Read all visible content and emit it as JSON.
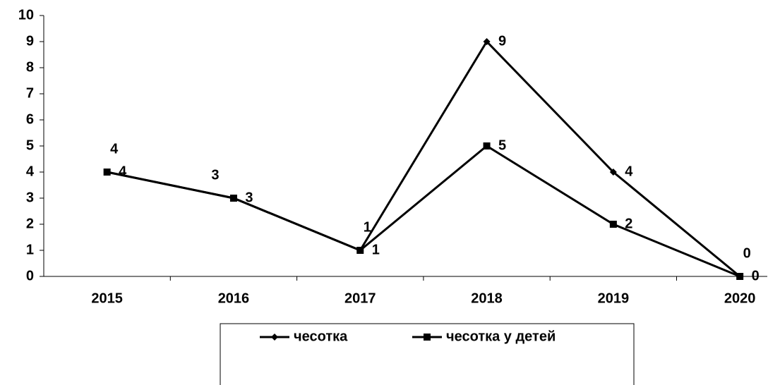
{
  "chart_data": {
    "type": "line",
    "categories": [
      "2015",
      "2016",
      "2017",
      "2018",
      "2019",
      "2020"
    ],
    "series": [
      {
        "name": "чесотка",
        "color": "#000000",
        "marker": "diamond",
        "values": [
          4,
          3,
          1,
          9,
          4,
          0
        ]
      },
      {
        "name": "чесотка у детей",
        "color": "#000000",
        "marker": "square",
        "values": [
          4,
          3,
          1,
          5,
          2,
          0
        ]
      }
    ],
    "ylim": [
      0,
      10
    ],
    "yticks": [
      0,
      1,
      2,
      3,
      4,
      5,
      6,
      7,
      8,
      9,
      10
    ],
    "grid": false,
    "legend": "bottom"
  }
}
